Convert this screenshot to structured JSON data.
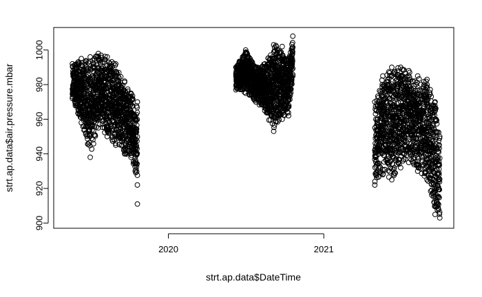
{
  "chart_data": {
    "type": "scatter",
    "title": "",
    "xlabel": "strt.ap.data$DateTime",
    "ylabel": "strt.ap.data$air.pressure.mbar",
    "x_ticks": [
      "2020",
      "2021"
    ],
    "y_ticks": [
      900,
      920,
      940,
      960,
      980,
      1000
    ],
    "xlim": [
      "2019-04-06",
      "2021-11-03"
    ],
    "ylim": [
      897,
      1013
    ],
    "marker": "open-circle",
    "grid": false,
    "colors": {
      "points": "#000000",
      "axes": "#000000",
      "background": "#ffffff"
    },
    "segments": [
      {
        "start": "2019-05-20",
        "end": "2019-10-20",
        "min_y": 922,
        "max_y": 999,
        "envelope": [
          {
            "x": "2019-05-20",
            "low": 972,
            "high": 992
          },
          {
            "x": "2019-06-10",
            "low": 958,
            "high": 995
          },
          {
            "x": "2019-07-01",
            "low": 938,
            "high": 996
          },
          {
            "x": "2019-07-20",
            "low": 955,
            "high": 998
          },
          {
            "x": "2019-08-10",
            "low": 950,
            "high": 996
          },
          {
            "x": "2019-08-30",
            "low": 945,
            "high": 992
          },
          {
            "x": "2019-09-20",
            "low": 940,
            "high": 982
          },
          {
            "x": "2019-10-05",
            "low": 938,
            "high": 975
          },
          {
            "x": "2019-10-20",
            "low": 922,
            "high": 970
          }
        ],
        "outliers": [
          {
            "x": "2019-10-20",
            "y": 911
          }
        ]
      },
      {
        "start": "2020-06-08",
        "end": "2020-10-20",
        "min_y": 953,
        "max_y": 1008,
        "envelope": [
          {
            "x": "2020-06-08",
            "low": 977,
            "high": 990
          },
          {
            "x": "2020-07-01",
            "low": 975,
            "high": 1000
          },
          {
            "x": "2020-07-25",
            "low": 970,
            "high": 990
          },
          {
            "x": "2020-08-15",
            "low": 965,
            "high": 992
          },
          {
            "x": "2020-09-05",
            "low": 953,
            "high": 1003
          },
          {
            "x": "2020-09-25",
            "low": 960,
            "high": 1002
          },
          {
            "x": "2020-10-10",
            "low": 962,
            "high": 995
          },
          {
            "x": "2020-10-20",
            "low": 985,
            "high": 1008
          }
        ],
        "outliers": []
      },
      {
        "start": "2021-05-01",
        "end": "2021-10-01",
        "min_y": 903,
        "max_y": 990,
        "envelope": [
          {
            "x": "2021-05-01",
            "low": 922,
            "high": 970
          },
          {
            "x": "2021-05-20",
            "low": 928,
            "high": 985
          },
          {
            "x": "2021-06-10",
            "low": 925,
            "high": 990
          },
          {
            "x": "2021-07-01",
            "low": 932,
            "high": 990
          },
          {
            "x": "2021-07-20",
            "low": 935,
            "high": 988
          },
          {
            "x": "2021-08-10",
            "low": 930,
            "high": 985
          },
          {
            "x": "2021-09-01",
            "low": 925,
            "high": 983
          },
          {
            "x": "2021-09-20",
            "low": 905,
            "high": 970
          },
          {
            "x": "2021-10-01",
            "low": 903,
            "high": 950
          }
        ],
        "outliers": []
      }
    ]
  }
}
